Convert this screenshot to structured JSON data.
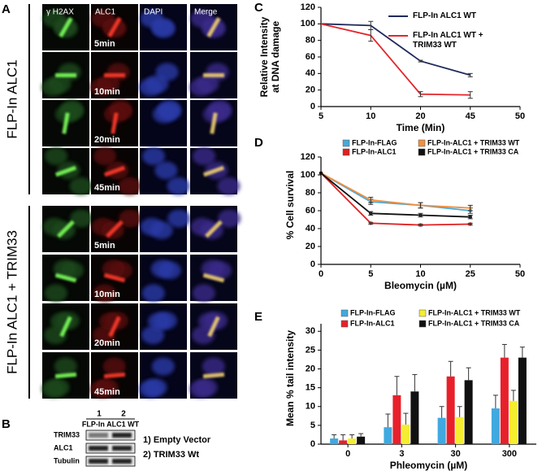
{
  "panel_labels": [
    "A",
    "B",
    "C",
    "D",
    "E"
  ],
  "panel_a": {
    "columns": [
      "γ H2AX",
      "ALC1",
      "DAPI",
      "Merge"
    ],
    "groups": [
      {
        "label": "FLP-In ALC1",
        "times": [
          "5min",
          "10min",
          "20min",
          "45min"
        ]
      },
      {
        "label": "FLP-In ALC1 + TRIM33",
        "times": [
          "5min",
          "10min",
          "20min",
          "45min"
        ]
      }
    ]
  },
  "panel_b": {
    "lanes": [
      "1",
      "2"
    ],
    "lane_header": "FLP-In ALC1 WT",
    "rows": [
      "TRIM33",
      "ALC1",
      "Tubulin"
    ],
    "legend": [
      "1) Empty Vector",
      "2) TRIM33 Wt"
    ]
  },
  "chart_data": [
    {
      "type": "line",
      "categories": [
        "5",
        "10",
        "20",
        "45",
        "50"
      ],
      "series": [
        {
          "name": "FLP-In ALC1 WT",
          "color": "#1f2a5c",
          "values": [
            100,
            98,
            55,
            38,
            null
          ],
          "errors": [
            null,
            5,
            1,
            2,
            null
          ]
        },
        {
          "name": "FLP-In ALC1 WT + TRIM33 WT",
          "color": "#e3262b",
          "values": [
            100,
            86,
            15,
            14,
            null
          ],
          "errors": [
            null,
            7,
            3,
            4,
            null
          ]
        }
      ],
      "ylim": [
        0,
        120
      ],
      "yticks": [
        0,
        20,
        40,
        60,
        80,
        100,
        120
      ],
      "y_label": "Relative Intensity at DNA damage",
      "x_label": "Time (Min)",
      "legend": "upper right",
      "markers": false
    },
    {
      "type": "line",
      "categories": [
        "0",
        "5",
        "10",
        "25",
        "50"
      ],
      "series": [
        {
          "name": "FLP-In-FLAG",
          "color": "#4aa8d8",
          "values": [
            102,
            70,
            66,
            60,
            null
          ],
          "errors": [
            null,
            3,
            3,
            3,
            null
          ]
        },
        {
          "name": "FLP-In-ALC1",
          "color": "#e02020",
          "values": [
            102,
            46,
            44,
            45,
            null
          ],
          "errors": [
            null,
            1,
            1,
            1,
            null
          ]
        },
        {
          "name": "FLP-In-ALC1 + TRIM33 WT",
          "color": "#f09040",
          "values": [
            102,
            72,
            66,
            63,
            null
          ],
          "errors": [
            null,
            3,
            3,
            3,
            null
          ]
        },
        {
          "name": "FLP-In-ALC1 + TRIM33 CA",
          "color": "#111111",
          "values": [
            102,
            57,
            55,
            53,
            null
          ],
          "errors": [
            null,
            2,
            2,
            2,
            null
          ]
        }
      ],
      "ylim": [
        0,
        120
      ],
      "yticks": [
        0,
        20,
        40,
        60,
        80,
        100,
        120
      ],
      "y_label": "% Cell survival",
      "x_label": "Bleomycin (µM)",
      "legend": "top",
      "markers": true
    },
    {
      "type": "bar",
      "categories": [
        "0",
        "3",
        "30",
        "300"
      ],
      "series": [
        {
          "name": "FLP-In-FLAG",
          "color": "#3fa9e0",
          "values": [
            1.5,
            4.5,
            7,
            9.5
          ],
          "errors": [
            1,
            3.5,
            3,
            3.5
          ]
        },
        {
          "name": "FLP-In-ALC1",
          "color": "#e8202a",
          "values": [
            1,
            13,
            18,
            23
          ],
          "errors": [
            1.5,
            5,
            4,
            3.5
          ]
        },
        {
          "name": "FLP-In-ALC1 + TRIM33 WT",
          "color": "#f5ee30",
          "values": [
            1.5,
            5.2,
            7.2,
            11.5
          ],
          "errors": [
            1,
            3,
            2.8,
            2.8
          ]
        },
        {
          "name": "FLP-In-ALC1 + TRIM33 CA",
          "color": "#111111",
          "values": [
            2,
            14,
            17,
            23
          ],
          "errors": [
            0.8,
            4.5,
            3.3,
            2.8
          ]
        }
      ],
      "ylim": [
        0,
        32
      ],
      "yticks": [
        0,
        5,
        10,
        15,
        20,
        25,
        30
      ],
      "y_label": "Mean % tail intensity",
      "x_label": "Phleomycin (µM)",
      "legend": "top"
    }
  ]
}
